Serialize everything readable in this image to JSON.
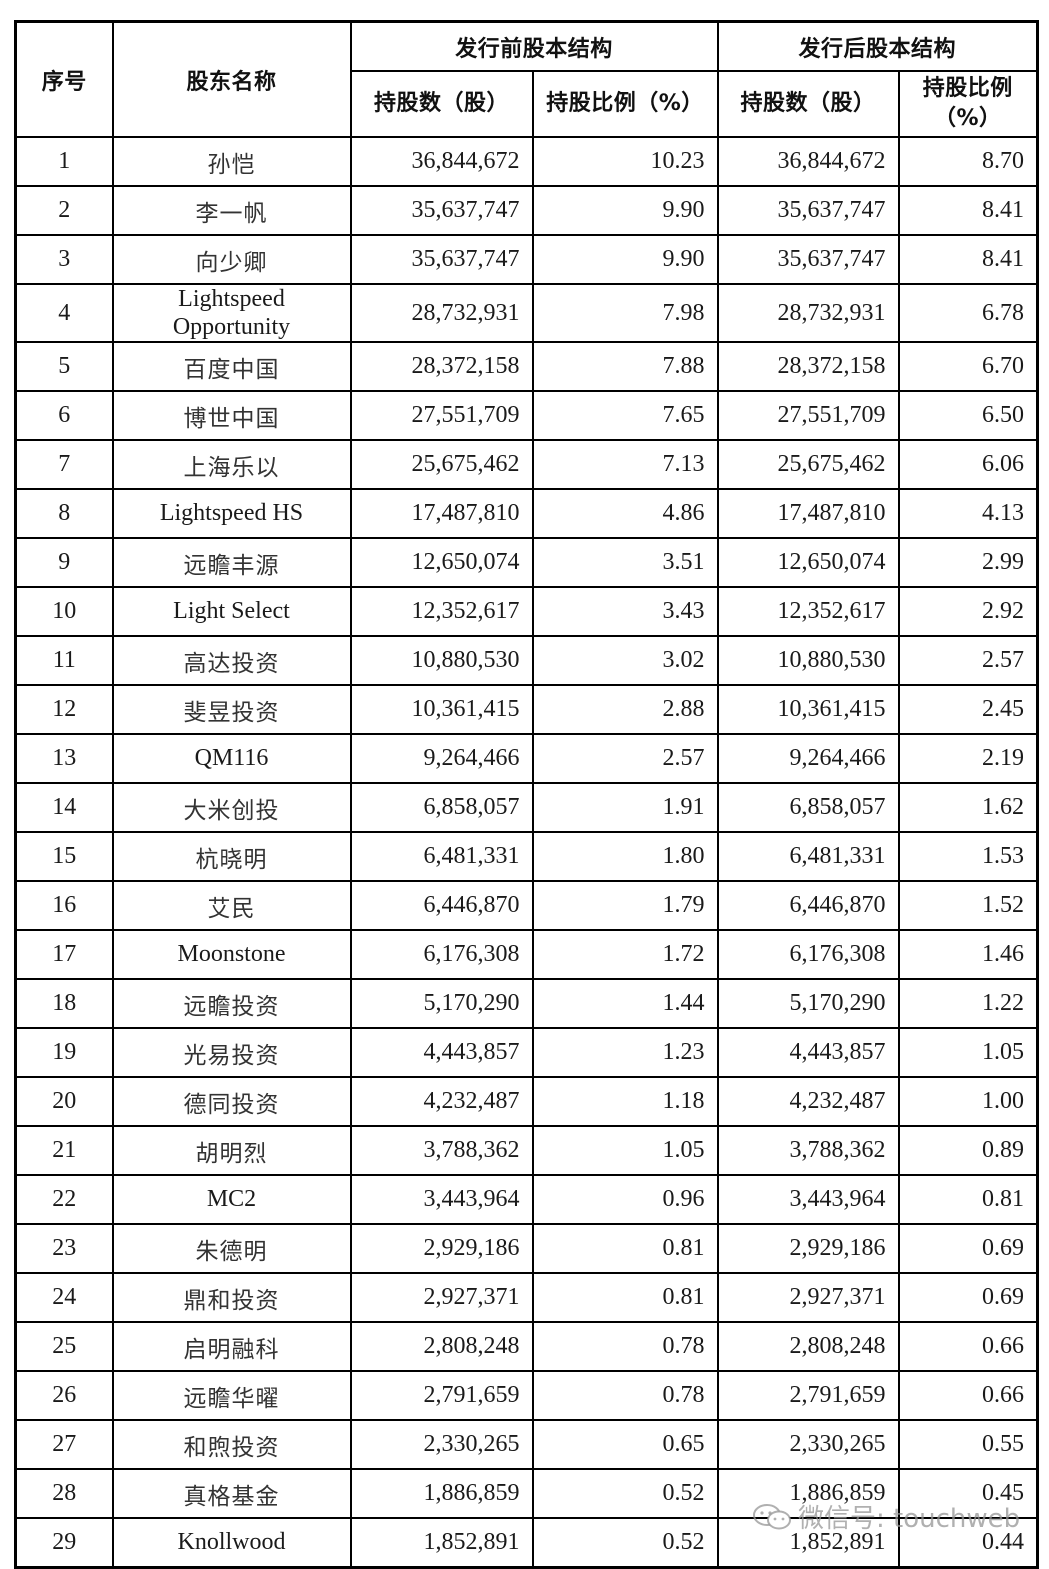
{
  "table": {
    "headers": {
      "index": "序号",
      "name": "股东名称",
      "pre_group": "发行前股本结构",
      "post_group": "发行后股本结构",
      "pre_shares": "持股数（股）",
      "pre_ratio": "持股比例（%）",
      "post_shares": "持股数（股）",
      "post_ratio_line1": "持股比例",
      "post_ratio_line2": "（%）"
    },
    "rows": [
      {
        "index": "1",
        "name": "孙恺",
        "pre_shares": "36,844,672",
        "pre_ratio": "10.23",
        "post_shares": "36,844,672",
        "post_ratio": "8.70"
      },
      {
        "index": "2",
        "name": "李一帆",
        "pre_shares": "35,637,747",
        "pre_ratio": "9.90",
        "post_shares": "35,637,747",
        "post_ratio": "8.41"
      },
      {
        "index": "3",
        "name": "向少卿",
        "pre_shares": "35,637,747",
        "pre_ratio": "9.90",
        "post_shares": "35,637,747",
        "post_ratio": "8.41"
      },
      {
        "index": "4",
        "name_line1": "Lightspeed",
        "name_line2": "Opportunity",
        "pre_shares": "28,732,931",
        "pre_ratio": "7.98",
        "post_shares": "28,732,931",
        "post_ratio": "6.78"
      },
      {
        "index": "5",
        "name": "百度中国",
        "pre_shares": "28,372,158",
        "pre_ratio": "7.88",
        "post_shares": "28,372,158",
        "post_ratio": "6.70"
      },
      {
        "index": "6",
        "name": "博世中国",
        "pre_shares": "27,551,709",
        "pre_ratio": "7.65",
        "post_shares": "27,551,709",
        "post_ratio": "6.50"
      },
      {
        "index": "7",
        "name": "上海乐以",
        "pre_shares": "25,675,462",
        "pre_ratio": "7.13",
        "post_shares": "25,675,462",
        "post_ratio": "6.06"
      },
      {
        "index": "8",
        "name": "Lightspeed HS",
        "pre_shares": "17,487,810",
        "pre_ratio": "4.86",
        "post_shares": "17,487,810",
        "post_ratio": "4.13"
      },
      {
        "index": "9",
        "name": "远瞻丰源",
        "pre_shares": "12,650,074",
        "pre_ratio": "3.51",
        "post_shares": "12,650,074",
        "post_ratio": "2.99"
      },
      {
        "index": "10",
        "name": "Light Select",
        "pre_shares": "12,352,617",
        "pre_ratio": "3.43",
        "post_shares": "12,352,617",
        "post_ratio": "2.92"
      },
      {
        "index": "11",
        "name": "高达投资",
        "pre_shares": "10,880,530",
        "pre_ratio": "3.02",
        "post_shares": "10,880,530",
        "post_ratio": "2.57"
      },
      {
        "index": "12",
        "name": "斐昱投资",
        "pre_shares": "10,361,415",
        "pre_ratio": "2.88",
        "post_shares": "10,361,415",
        "post_ratio": "2.45"
      },
      {
        "index": "13",
        "name": "QM116",
        "pre_shares": "9,264,466",
        "pre_ratio": "2.57",
        "post_shares": "9,264,466",
        "post_ratio": "2.19"
      },
      {
        "index": "14",
        "name": "大米创投",
        "pre_shares": "6,858,057",
        "pre_ratio": "1.91",
        "post_shares": "6,858,057",
        "post_ratio": "1.62"
      },
      {
        "index": "15",
        "name": "杭晓明",
        "pre_shares": "6,481,331",
        "pre_ratio": "1.80",
        "post_shares": "6,481,331",
        "post_ratio": "1.53"
      },
      {
        "index": "16",
        "name": "艾民",
        "pre_shares": "6,446,870",
        "pre_ratio": "1.79",
        "post_shares": "6,446,870",
        "post_ratio": "1.52"
      },
      {
        "index": "17",
        "name": "Moonstone",
        "pre_shares": "6,176,308",
        "pre_ratio": "1.72",
        "post_shares": "6,176,308",
        "post_ratio": "1.46"
      },
      {
        "index": "18",
        "name": "远瞻投资",
        "pre_shares": "5,170,290",
        "pre_ratio": "1.44",
        "post_shares": "5,170,290",
        "post_ratio": "1.22"
      },
      {
        "index": "19",
        "name": "光易投资",
        "pre_shares": "4,443,857",
        "pre_ratio": "1.23",
        "post_shares": "4,443,857",
        "post_ratio": "1.05"
      },
      {
        "index": "20",
        "name": "德同投资",
        "pre_shares": "4,232,487",
        "pre_ratio": "1.18",
        "post_shares": "4,232,487",
        "post_ratio": "1.00"
      },
      {
        "index": "21",
        "name": "胡明烈",
        "pre_shares": "3,788,362",
        "pre_ratio": "1.05",
        "post_shares": "3,788,362",
        "post_ratio": "0.89"
      },
      {
        "index": "22",
        "name": "MC2",
        "pre_shares": "3,443,964",
        "pre_ratio": "0.96",
        "post_shares": "3,443,964",
        "post_ratio": "0.81"
      },
      {
        "index": "23",
        "name": "朱德明",
        "pre_shares": "2,929,186",
        "pre_ratio": "0.81",
        "post_shares": "2,929,186",
        "post_ratio": "0.69"
      },
      {
        "index": "24",
        "name": "鼎和投资",
        "pre_shares": "2,927,371",
        "pre_ratio": "0.81",
        "post_shares": "2,927,371",
        "post_ratio": "0.69"
      },
      {
        "index": "25",
        "name": "启明融科",
        "pre_shares": "2,808,248",
        "pre_ratio": "0.78",
        "post_shares": "2,808,248",
        "post_ratio": "0.66"
      },
      {
        "index": "26",
        "name": "远瞻华曜",
        "pre_shares": "2,791,659",
        "pre_ratio": "0.78",
        "post_shares": "2,791,659",
        "post_ratio": "0.66"
      },
      {
        "index": "27",
        "name": "和煦投资",
        "pre_shares": "2,330,265",
        "pre_ratio": "0.65",
        "post_shares": "2,330,265",
        "post_ratio": "0.55"
      },
      {
        "index": "28",
        "name": "真格基金",
        "pre_shares": "1,886,859",
        "pre_ratio": "0.52",
        "post_shares": "1,886,859",
        "post_ratio": "0.45"
      },
      {
        "index": "29",
        "name": "Knollwood",
        "pre_shares": "1,852,891",
        "pre_ratio": "0.52",
        "post_shares": "1,852,891",
        "post_ratio": "0.44"
      }
    ]
  },
  "watermark": {
    "icon": "wechat-icon",
    "text": "微信号: touchweb"
  }
}
